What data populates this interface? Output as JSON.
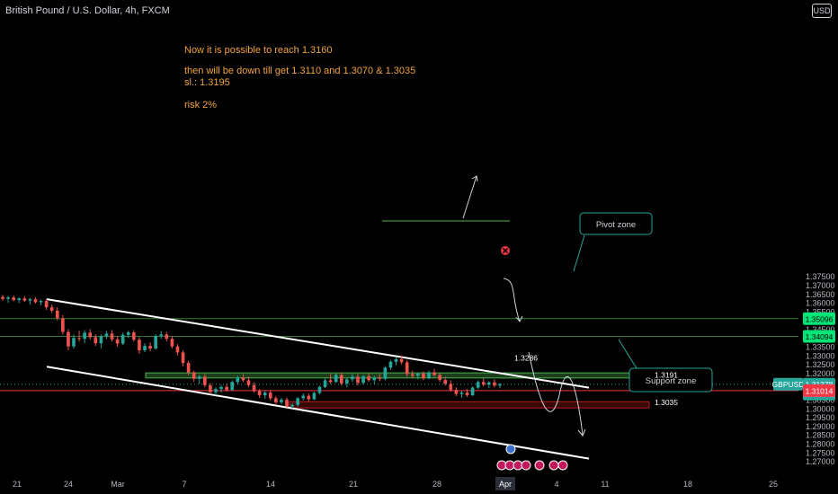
{
  "header": {
    "symbol_title": "British Pound / U.S. Dollar, 4h, FXCM",
    "currency_badge": "USD"
  },
  "notes": {
    "line1": "Now it is possible to reach 1.3160",
    "line2": "then will be down till get 1.3110 and 1.3070 & 1.3035",
    "line3": "sl.: 1.3195",
    "line4": "risk 2%"
  },
  "chart_data": {
    "type": "candlestick",
    "title": "",
    "price_axis": {
      "ticks": [
        "1.37500",
        "1.37000",
        "1.36500",
        "1.36000",
        "1.35500",
        "1.35000",
        "1.34500",
        "1.34000",
        "1.33500",
        "1.33000",
        "1.32500",
        "1.32000",
        "1.31500",
        "1.31000",
        "1.30500",
        "1.30000",
        "1.29500",
        "1.29000",
        "1.28500",
        "1.28000",
        "1.27500",
        "1.27000"
      ],
      "range": [
        1.2685,
        1.3785
      ]
    },
    "time_axis": {
      "ticks": [
        "21",
        "24",
        "Mar",
        "7",
        "14",
        "21",
        "28",
        "Apr",
        "4",
        "11",
        "18",
        "25"
      ],
      "highlighted": "Apr"
    },
    "price_markers": [
      {
        "label": "1.35096",
        "value": 1.35096,
        "color": "#00e676"
      },
      {
        "label": "1.34094",
        "value": 1.34094,
        "color": "#00e676"
      },
      {
        "label": "GBPUSD",
        "value": 1.31378,
        "color": "#26a69a"
      },
      {
        "label": "1.31378",
        "value": 1.31378,
        "color": "#26a69a"
      },
      {
        "label": "03:19:41",
        "value": 1.31378,
        "color": "#26a69a"
      },
      {
        "label": "1.31014",
        "value": 1.31014,
        "color": "#f23645"
      }
    ],
    "horizontal_lines": [
      {
        "value": 1.35096,
        "color": "#2e7d32"
      },
      {
        "value": 1.34094,
        "color": "#2e7d32"
      },
      {
        "value": 1.31014,
        "color": "#f23645"
      },
      {
        "value": 1.31378,
        "color": "#26a69a",
        "style": "dotted"
      }
    ],
    "zones": [
      {
        "name": "Pivot zone",
        "from": 1.3173,
        "to": 1.3202,
        "color": "#4caf50"
      },
      {
        "name": "Support zone",
        "from": 1.3003,
        "to": 1.3038,
        "color": "#b71c1c"
      }
    ],
    "level_labels": [
      {
        "label": "1.3286",
        "value": 1.3286
      },
      {
        "label": "1.3191",
        "value": 1.3191
      },
      {
        "label": "1.3035",
        "value": 1.3035
      }
    ],
    "callouts": [
      {
        "label": "Pivot zone"
      },
      {
        "label": "Support zone"
      }
    ],
    "channel": {
      "upper": [
        [
          1.362,
          0
        ],
        [
          1.3118,
          1
        ]
      ],
      "lower": [
        [
          1.3237,
          0
        ],
        [
          1.2715,
          1
        ]
      ]
    },
    "candles": [
      [
        1.3633,
        1.3645,
        1.361,
        1.3622
      ],
      [
        1.3622,
        1.364,
        1.36,
        1.363
      ],
      [
        1.363,
        1.3642,
        1.3608,
        1.3615
      ],
      [
        1.3615,
        1.363,
        1.3598,
        1.3625
      ],
      [
        1.3625,
        1.3638,
        1.3605,
        1.3612
      ],
      [
        1.3612,
        1.3627,
        1.359,
        1.362
      ],
      [
        1.362,
        1.3632,
        1.3595,
        1.3603
      ],
      [
        1.3603,
        1.3618,
        1.3585,
        1.361
      ],
      [
        1.361,
        1.3622,
        1.356,
        1.3574
      ],
      [
        1.3574,
        1.359,
        1.3542,
        1.3555
      ],
      [
        1.3555,
        1.3575,
        1.35,
        1.3512
      ],
      [
        1.3512,
        1.353,
        1.342,
        1.3435
      ],
      [
        1.3435,
        1.345,
        1.333,
        1.3352
      ],
      [
        1.3352,
        1.342,
        1.334,
        1.34
      ],
      [
        1.34,
        1.344,
        1.338,
        1.3395
      ],
      [
        1.3395,
        1.3445,
        1.337,
        1.343
      ],
      [
        1.343,
        1.345,
        1.339,
        1.3405
      ],
      [
        1.3405,
        1.342,
        1.3355,
        1.337
      ],
      [
        1.337,
        1.342,
        1.334,
        1.341
      ],
      [
        1.341,
        1.344,
        1.3395,
        1.3425
      ],
      [
        1.3425,
        1.3445,
        1.338,
        1.3392
      ],
      [
        1.3392,
        1.341,
        1.335,
        1.3368
      ],
      [
        1.3368,
        1.343,
        1.336,
        1.3418
      ],
      [
        1.3418,
        1.344,
        1.34,
        1.3432
      ],
      [
        1.3432,
        1.3445,
        1.338,
        1.339
      ],
      [
        1.339,
        1.3405,
        1.331,
        1.333
      ],
      [
        1.333,
        1.337,
        1.332,
        1.3355
      ],
      [
        1.3355,
        1.3375,
        1.3325,
        1.334
      ],
      [
        1.334,
        1.342,
        1.3335,
        1.3412
      ],
      [
        1.3412,
        1.344,
        1.3395,
        1.342
      ],
      [
        1.342,
        1.3435,
        1.338,
        1.3395
      ],
      [
        1.3395,
        1.341,
        1.334,
        1.3352
      ],
      [
        1.3352,
        1.3365,
        1.33,
        1.3318
      ],
      [
        1.3318,
        1.333,
        1.324,
        1.3258
      ],
      [
        1.3258,
        1.327,
        1.319,
        1.3205
      ],
      [
        1.3205,
        1.3215,
        1.315,
        1.3168
      ],
      [
        1.3168,
        1.319,
        1.314,
        1.318
      ],
      [
        1.318,
        1.3195,
        1.312,
        1.3132
      ],
      [
        1.3132,
        1.3145,
        1.308,
        1.3092
      ],
      [
        1.3092,
        1.312,
        1.3075,
        1.311
      ],
      [
        1.311,
        1.3135,
        1.309,
        1.3122
      ],
      [
        1.3122,
        1.314,
        1.3095,
        1.3105
      ],
      [
        1.3105,
        1.316,
        1.31,
        1.315
      ],
      [
        1.315,
        1.3185,
        1.3135,
        1.3175
      ],
      [
        1.3175,
        1.3195,
        1.315,
        1.316
      ],
      [
        1.316,
        1.318,
        1.312,
        1.3132
      ],
      [
        1.3132,
        1.3148,
        1.309,
        1.3098
      ],
      [
        1.3098,
        1.311,
        1.306,
        1.3075
      ],
      [
        1.3075,
        1.31,
        1.3055,
        1.309
      ],
      [
        1.309,
        1.3105,
        1.3045,
        1.3058
      ],
      [
        1.3058,
        1.307,
        1.302,
        1.3035
      ],
      [
        1.3035,
        1.306,
        1.3025,
        1.305
      ],
      [
        1.305,
        1.3062,
        1.3005,
        1.3012
      ],
      [
        1.3012,
        1.303,
        1.3,
        1.302
      ],
      [
        1.302,
        1.3065,
        1.301,
        1.3058
      ],
      [
        1.3058,
        1.3085,
        1.3045,
        1.3072
      ],
      [
        1.3072,
        1.3085,
        1.304,
        1.3052
      ],
      [
        1.3052,
        1.3095,
        1.3048,
        1.3088
      ],
      [
        1.3088,
        1.313,
        1.308,
        1.3122
      ],
      [
        1.3122,
        1.317,
        1.3115,
        1.316
      ],
      [
        1.316,
        1.3195,
        1.314,
        1.315
      ],
      [
        1.315,
        1.32,
        1.3145,
        1.319
      ],
      [
        1.319,
        1.3205,
        1.313,
        1.3142
      ],
      [
        1.3142,
        1.3175,
        1.312,
        1.3165
      ],
      [
        1.3165,
        1.3195,
        1.315,
        1.318
      ],
      [
        1.318,
        1.3195,
        1.313,
        1.3145
      ],
      [
        1.3145,
        1.319,
        1.3135,
        1.3182
      ],
      [
        1.3182,
        1.32,
        1.315,
        1.316
      ],
      [
        1.316,
        1.3185,
        1.314,
        1.3175
      ],
      [
        1.3175,
        1.3195,
        1.3155,
        1.3168
      ],
      [
        1.3168,
        1.324,
        1.316,
        1.3232
      ],
      [
        1.3232,
        1.3275,
        1.322,
        1.3265
      ],
      [
        1.3265,
        1.329,
        1.3245,
        1.328
      ],
      [
        1.328,
        1.33,
        1.325,
        1.3262
      ],
      [
        1.3262,
        1.3275,
        1.318,
        1.3195
      ],
      [
        1.3195,
        1.3215,
        1.317,
        1.3185
      ],
      [
        1.3185,
        1.3205,
        1.3165,
        1.3198
      ],
      [
        1.3198,
        1.321,
        1.316,
        1.3172
      ],
      [
        1.3172,
        1.3215,
        1.3165,
        1.3205
      ],
      [
        1.3205,
        1.3225,
        1.318,
        1.319
      ],
      [
        1.319,
        1.32,
        1.315,
        1.3162
      ],
      [
        1.3162,
        1.318,
        1.313,
        1.314
      ],
      [
        1.314,
        1.316,
        1.3095,
        1.3105
      ],
      [
        1.3105,
        1.312,
        1.307,
        1.3082
      ],
      [
        1.3082,
        1.31,
        1.3062,
        1.309
      ],
      [
        1.309,
        1.311,
        1.3065,
        1.3075
      ],
      [
        1.3075,
        1.3125,
        1.307,
        1.3118
      ],
      [
        1.3118,
        1.316,
        1.311,
        1.315
      ],
      [
        1.315,
        1.317,
        1.3125,
        1.3135
      ],
      [
        1.3135,
        1.3155,
        1.3115,
        1.3148
      ],
      [
        1.3148,
        1.3165,
        1.312,
        1.313
      ],
      [
        1.313,
        1.3145,
        1.3115,
        1.3138
      ]
    ]
  }
}
